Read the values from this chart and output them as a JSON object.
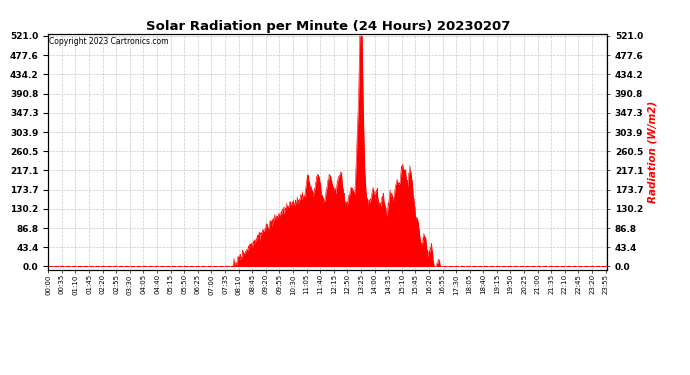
{
  "title": "Solar Radiation per Minute (24 Hours) 20230207",
  "copyright_text": "Copyright 2023 Cartronics.com",
  "ylabel": "Radiation (W/m2)",
  "ylabel_color": "#ff0000",
  "background_color": "#ffffff",
  "grid_color": "#bbbbbb",
  "fill_color": "#ff0000",
  "line_color": "#ff0000",
  "ymax": 521.0,
  "yticks": [
    0.0,
    43.4,
    86.8,
    130.2,
    173.7,
    217.1,
    260.5,
    303.9,
    347.3,
    390.8,
    434.2,
    477.6,
    521.0
  ],
  "total_minutes": 1440,
  "sunrise_minute": 475,
  "sunset_minute": 1010,
  "tick_interval": 35
}
